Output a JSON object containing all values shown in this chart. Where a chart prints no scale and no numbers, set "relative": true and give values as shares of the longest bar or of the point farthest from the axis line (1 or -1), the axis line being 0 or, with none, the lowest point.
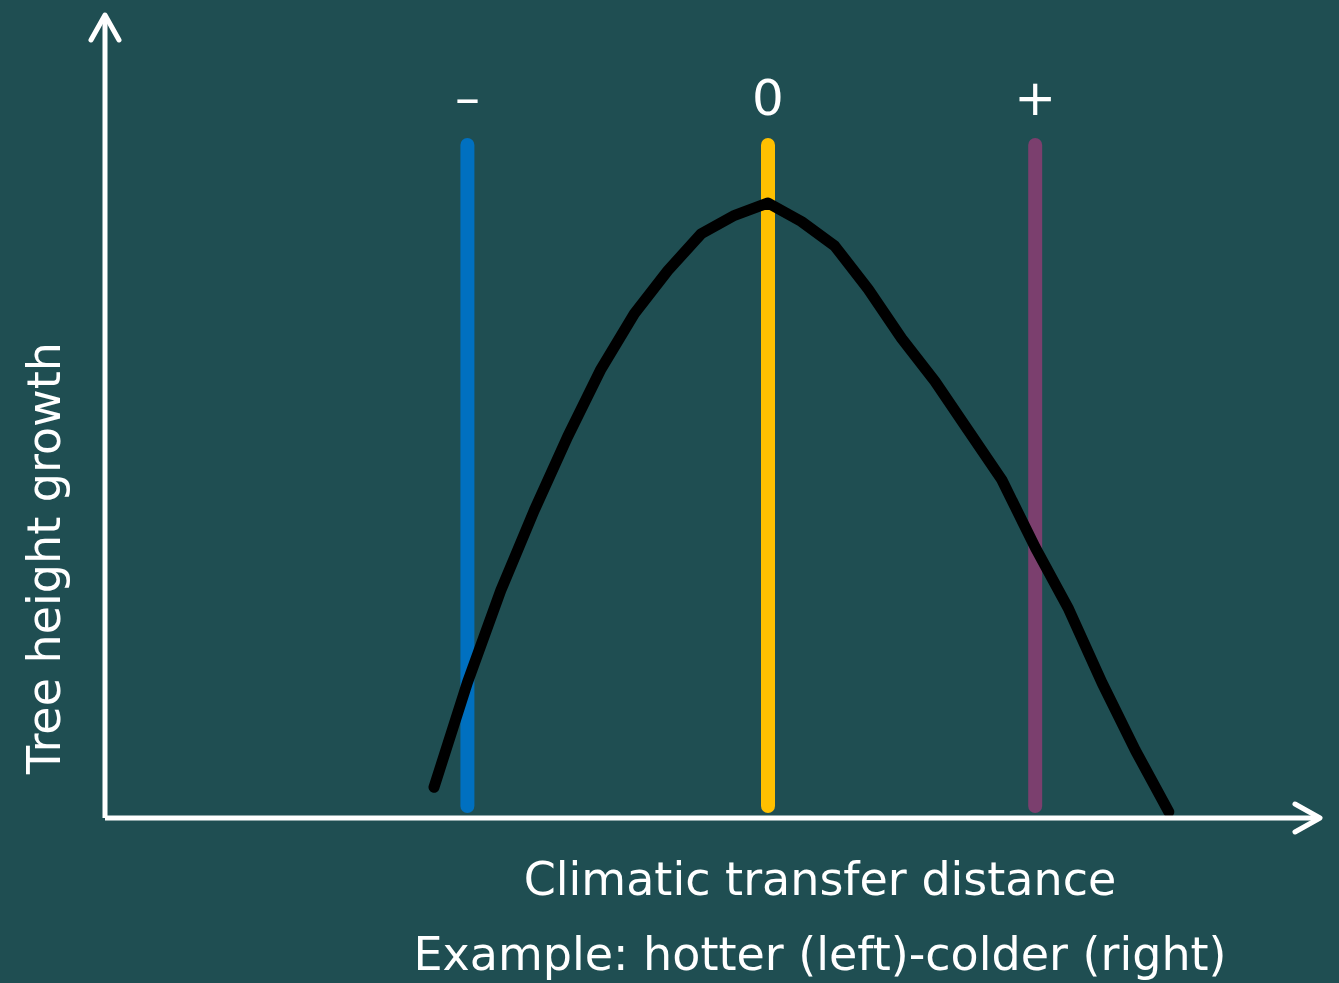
{
  "chart_data": {
    "type": "line",
    "relative": true,
    "xlabel": "Climatic transfer distance\nExample: hotter (left)-colder (right)",
    "ylabel": "Tree height growth",
    "categories": [
      null,
      null,
      null,
      null,
      null,
      null,
      null,
      null,
      null,
      null,
      "–",
      null,
      null,
      null,
      null,
      null,
      null,
      null,
      null,
      "0",
      null,
      null,
      null,
      null,
      null,
      null,
      null,
      "+",
      null,
      null,
      null,
      null,
      null
    ],
    "series": [
      {
        "color": "#000000",
        "values": [
          null,
          null,
          null,
          null,
          null,
          null,
          null,
          null,
          null,
          0.05,
          0.22,
          0.37,
          0.5,
          0.62,
          0.73,
          0.82,
          0.89,
          0.95,
          0.98,
          1,
          0.97,
          0.93,
          0.86,
          0.78,
          0.71,
          0.63,
          0.55,
          0.44,
          0.34,
          0.22,
          0.11,
          0.01,
          null
        ]
      }
    ],
    "ref_lines": [
      {
        "axis": "x",
        "value": "–",
        "color": "#0070c0"
      },
      {
        "axis": "x",
        "value": "0",
        "color": "#ffc000"
      },
      {
        "axis": "x",
        "value": "+",
        "color": "#7b3f6e"
      }
    ],
    "grid": false,
    "legend": false,
    "marker": "none",
    "line_style": "solid"
  }
}
